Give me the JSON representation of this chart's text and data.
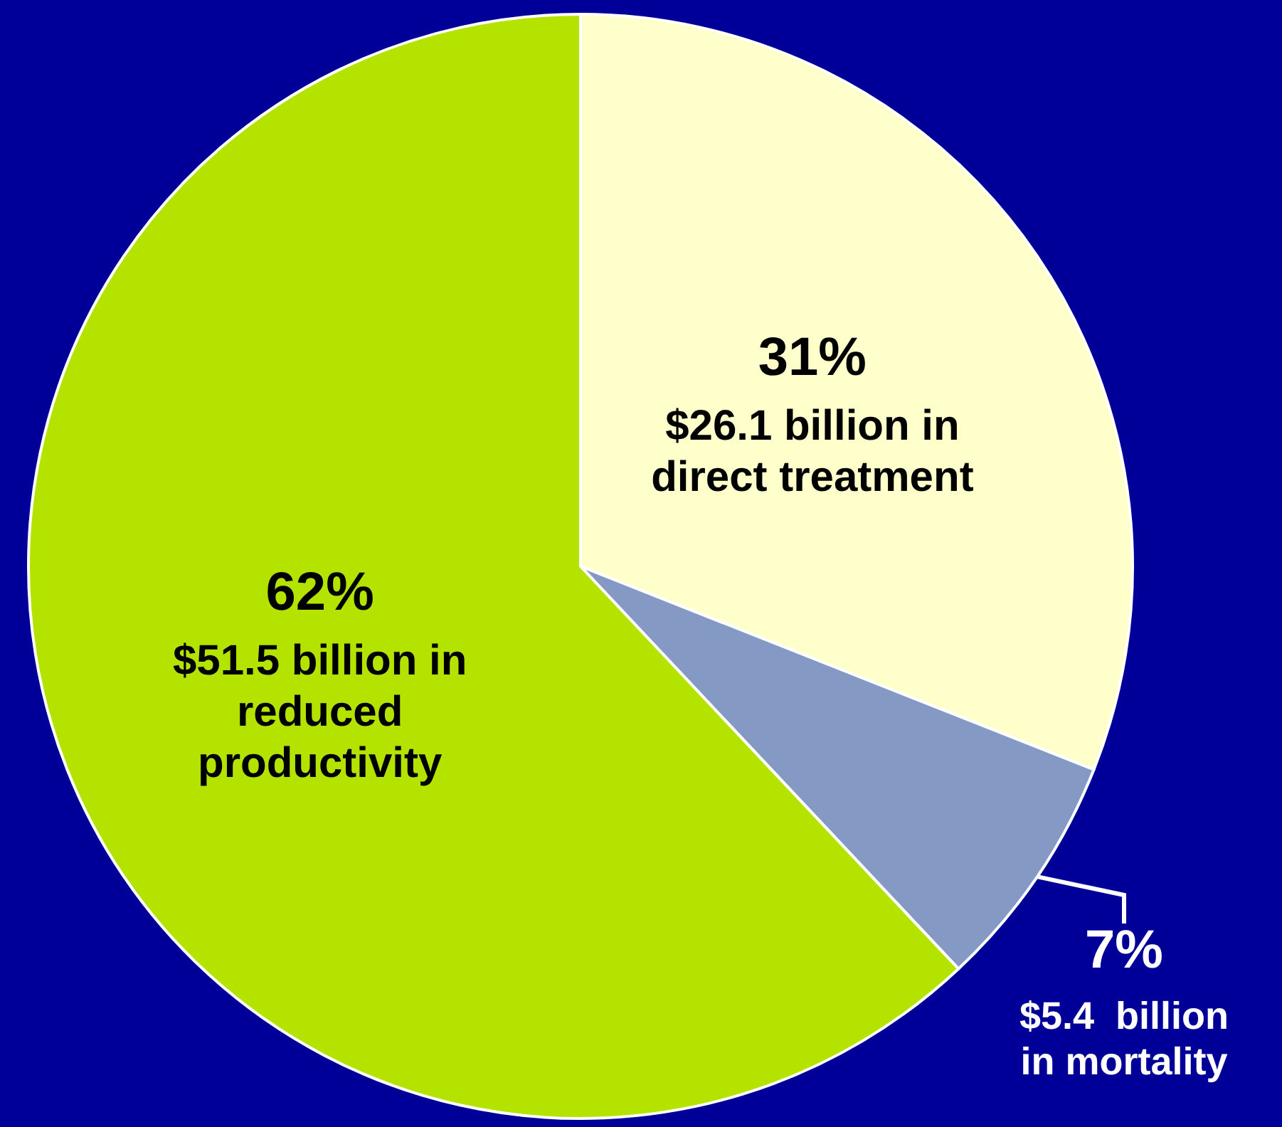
{
  "chart_data": {
    "type": "pie",
    "categories": [
      "$26.1 billion in direct treatment",
      "$5.4  billion in mortality",
      "$51.5 billion in reduced productivity"
    ],
    "values": [
      31,
      7,
      62
    ],
    "colors": [
      "#ffffcc",
      "#8499c4",
      "#b5e300"
    ],
    "value_labels": [
      "31%",
      "7%",
      "62%"
    ],
    "legend": false
  }
}
